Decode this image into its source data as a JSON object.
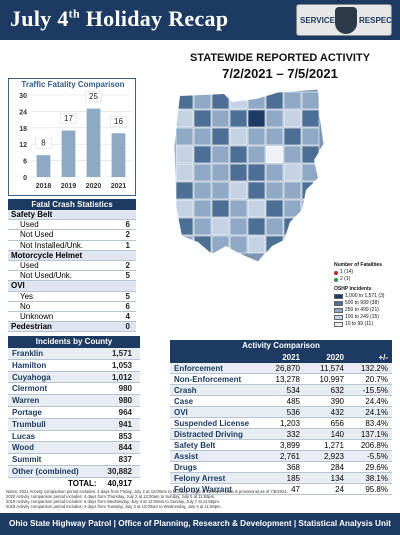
{
  "header": {
    "title_main": "July 4",
    "title_sup": "th",
    "title_rest": " Holiday Recap",
    "badge_left": "SERVICE",
    "badge_right": "RESPECT"
  },
  "stats": {
    "title": "STATEWIDE REPORTED ACTIVITY",
    "dates": "7/2/2021 – 7/5/2021"
  },
  "chart_data": {
    "type": "bar",
    "title": "Traffic Fatality Comparison",
    "categories": [
      "2018",
      "2019",
      "2020",
      "2021"
    ],
    "values": [
      8,
      17,
      25,
      16
    ],
    "ylim": [
      0,
      30
    ],
    "yticks": [
      0,
      6,
      12,
      18,
      24,
      30
    ],
    "color": "#8da9c4",
    "grid": true
  },
  "fatal_crash": {
    "title": "Fatal Crash Statistics",
    "groups": [
      {
        "label": "Safety Belt",
        "rows": [
          {
            "label": "Used",
            "value": "6"
          },
          {
            "label": "Not Used",
            "value": "2"
          },
          {
            "label": "Not Installed/Unk.",
            "value": "1"
          }
        ]
      },
      {
        "label": "Motorcycle Helmet",
        "rows": [
          {
            "label": "Used",
            "value": "2"
          },
          {
            "label": "Not Used/Unk.",
            "value": "5"
          }
        ]
      },
      {
        "label": "OVI",
        "rows": [
          {
            "label": "Yes",
            "value": "5"
          },
          {
            "label": "No",
            "value": "6"
          },
          {
            "label": "Unknown",
            "value": "4"
          }
        ]
      }
    ],
    "pedestrian_label": "Pedestrian",
    "pedestrian_value": "0"
  },
  "incidents_by_county": {
    "title": "Incidents by County",
    "rows": [
      {
        "county": "Franklin",
        "value": "1,571"
      },
      {
        "county": "Hamilton",
        "value": "1,053"
      },
      {
        "county": "Cuyahoga",
        "value": "1,012"
      },
      {
        "county": "Clermont",
        "value": "980"
      },
      {
        "county": "Warren",
        "value": "980"
      },
      {
        "county": "Portage",
        "value": "964"
      },
      {
        "county": "Trumbull",
        "value": "941"
      },
      {
        "county": "Lucas",
        "value": "853"
      },
      {
        "county": "Wood",
        "value": "844"
      },
      {
        "county": "Summit",
        "value": "837"
      },
      {
        "county": "Other (combined)",
        "value": "30,882"
      }
    ],
    "total_label": "TOTAL:",
    "total_value": "40,917"
  },
  "activity_comparison": {
    "title": "Activity Comparison",
    "headers": [
      "",
      "2021",
      "2020",
      "+/-"
    ],
    "rows": [
      {
        "label": "Enforcement",
        "y2021": "26,870",
        "y2020": "11,574",
        "change": "132.2%"
      },
      {
        "label": "Non-Enforcement",
        "y2021": "13,278",
        "y2020": "10,997",
        "change": "20.7%"
      },
      {
        "label": "Crash",
        "y2021": "534",
        "y2020": "632",
        "change": "-15.5%"
      },
      {
        "label": "Case",
        "y2021": "485",
        "y2020": "390",
        "change": "24.4%"
      },
      {
        "label": "OVI",
        "y2021": "536",
        "y2020": "432",
        "change": "24.1%"
      },
      {
        "label": "Suspended License",
        "y2021": "1,203",
        "y2020": "656",
        "change": "83.4%"
      },
      {
        "label": "Distracted Driving",
        "y2021": "332",
        "y2020": "140",
        "change": "137.1%"
      },
      {
        "label": "Safety Belt",
        "y2021": "3,899",
        "y2020": "1,271",
        "change": "206.8%"
      },
      {
        "label": "Assist",
        "y2021": "2,761",
        "y2020": "2,923",
        "change": "-5.5%"
      },
      {
        "label": "Drugs",
        "y2021": "368",
        "y2020": "284",
        "change": "29.6%"
      },
      {
        "label": "Felony Arrest",
        "y2021": "185",
        "y2020": "134",
        "change": "38.1%"
      },
      {
        "label": "Felony Warrant",
        "y2021": "47",
        "y2020": "24",
        "change": "95.8%"
      }
    ]
  },
  "map_legend": {
    "fatalities_title": "Number of Fatalities",
    "fatal_1": "1  (14)",
    "fatal_2": "2  (1)",
    "incidents_title": "OSHP Incidents",
    "bins": [
      {
        "label": "1,000  to  1,571   (3)",
        "color": "#1d3b62"
      },
      {
        "label": "500  to    999  (38)",
        "color": "#4d6e95"
      },
      {
        "label": "250  to    499  (21)",
        "color": "#8fa8c5"
      },
      {
        "label": "100  to    249  (15)",
        "color": "#c4d2e3"
      },
      {
        "label": "10  to     99  (11)",
        "color": "#eef2f7"
      }
    ]
  },
  "notes": [
    "Notes: 2021 Activity comparison period includes: 4 days from Friday, July 2 at 12:00am to Monday, July 5 at 11:59pm. Data is provisional as of 7/6/2021.",
    "2020 Activity comparison period includes: 4 days from Thursday, July 2 at 12:00am to Sunday, July 5 at 11:59pm.",
    "2019 Activity comparison period includes: 5 days from Wednesday, July 3 at 12:00am to Sunday, July 7 at 11:59pm.",
    "2018 Activity comparison period includes: 2 days from Tuesday, July 3 at 12:00am to Wednesday, July 4 at 11:59pm."
  ],
  "footer": "Ohio State Highway Patrol  |  Office of Planning, Research & Development  |  Statistical Analysis Unit"
}
